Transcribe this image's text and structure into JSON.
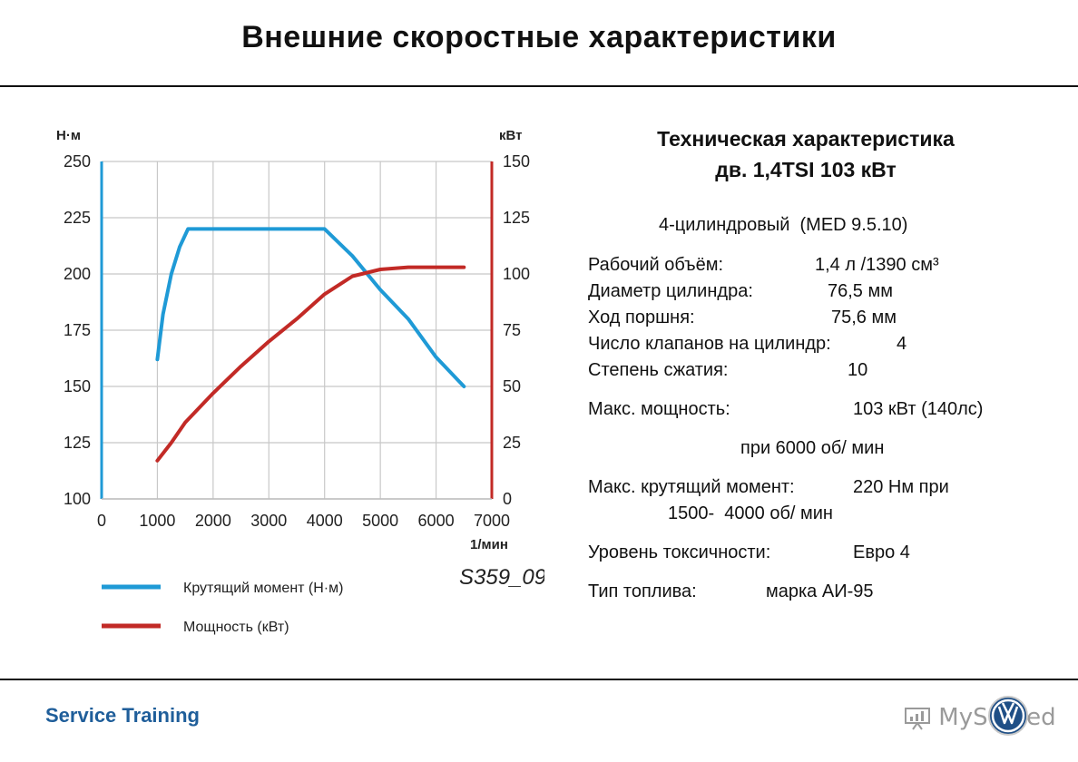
{
  "page": {
    "title": "Внешние скоростные характеристики",
    "footer_brand": "Service Training",
    "watermark_text": "MyShared",
    "logo_icon": "vw-logo-icon",
    "colors": {
      "torque": "#1f9ad6",
      "power": "#c22a26",
      "brand": "#1f5e9a"
    }
  },
  "spec": {
    "heading_line1": "Техническая характеристика",
    "heading_line2": "дв. 1,4TSI 103 кВт",
    "engine": "4-цилиндровый  (MED 9.5.10)",
    "displacement_label": "Рабочий объём:",
    "displacement_value": "1,4 л /1390 см³",
    "bore_label": "Диаметр цилиндра:",
    "bore_value": "76,5 мм",
    "stroke_label": "Ход поршня:",
    "stroke_value": "75,6 мм",
    "valves_label": "Число клапанов на цилиндр:",
    "valves_value": "4",
    "compression_label": "Степень сжатия:",
    "compression_value": "10",
    "power_label": "Макс. мощность:",
    "power_value": "103 кВт (140лс)",
    "power_rpm": "при 6000 об/ мин",
    "torque_label": "Макс. крутящий момент:",
    "torque_value": "220 Нм при",
    "torque_rpm": "1500-  4000 об/ мин",
    "emission_label": "Уровень токсичности:",
    "emission_value": "Евро 4",
    "fuel_label": "Тип топлива:",
    "fuel_value": "марка АИ-95"
  },
  "chart_data": {
    "type": "line",
    "title": "",
    "xlabel": "1/мин",
    "ylabel_left": "Н·м",
    "ylabel_right": "кВт",
    "xlim": [
      0,
      7000
    ],
    "ylim_left": [
      100,
      250
    ],
    "ylim_right": [
      0,
      150
    ],
    "x_ticks": [
      "0",
      "1000",
      "2000",
      "3000",
      "4000",
      "5000",
      "6000",
      "7000"
    ],
    "y_left_ticks": [
      "100",
      "125",
      "150",
      "175",
      "200",
      "225",
      "250"
    ],
    "y_right_ticks": [
      "0",
      "25",
      "50",
      "75",
      "100",
      "125",
      "150"
    ],
    "grid": true,
    "legend_placement": "bottom-left",
    "figure_code": "S359_09",
    "series": [
      {
        "name": "Крутящий момент (Н·м)",
        "axis": "left",
        "x": [
          1000,
          1100,
          1250,
          1400,
          1550,
          2000,
          3000,
          4000,
          4500,
          5000,
          5500,
          6000,
          6500
        ],
        "y": [
          162,
          182,
          200,
          212,
          220,
          220,
          220,
          220,
          208,
          193,
          180,
          163,
          150
        ]
      },
      {
        "name": "Мощность (кВт)",
        "axis": "right",
        "x": [
          1000,
          1250,
          1500,
          2000,
          2500,
          3000,
          3500,
          4000,
          4500,
          5000,
          5500,
          6000,
          6500
        ],
        "y": [
          17,
          25,
          34,
          47,
          59,
          70,
          80,
          91,
          99,
          102,
          103,
          103,
          103
        ]
      }
    ]
  }
}
